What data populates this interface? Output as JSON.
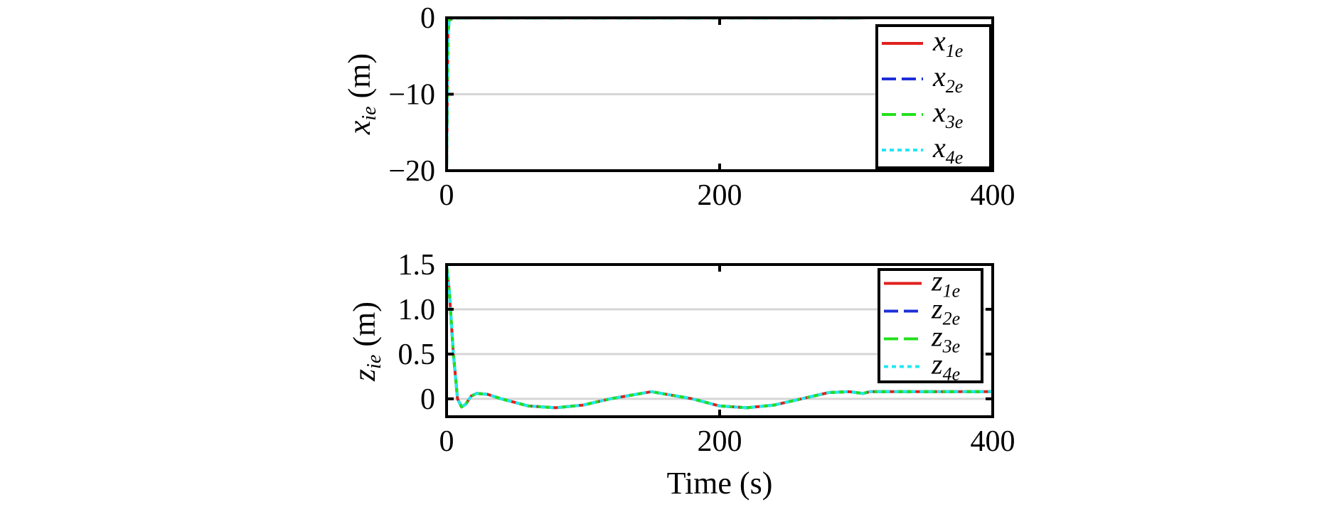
{
  "chart_data": [
    {
      "type": "line",
      "ylabel": {
        "main": "x",
        "sub": "ie",
        "unit": " (m)"
      },
      "xlabel": "",
      "xlim": [
        0,
        400
      ],
      "ylim": [
        -20,
        0
      ],
      "xticks": [
        "0",
        "200",
        "400"
      ],
      "xtick_values": [
        0,
        200,
        400
      ],
      "yticks": [
        "0",
        "−10",
        "−20"
      ],
      "ytick_values": [
        0,
        -10,
        -20
      ],
      "grid": "horizontal",
      "legend_placement": "top-right",
      "series": [
        {
          "name": "x",
          "sub": "1e",
          "color": "#e0201c",
          "style": "solid",
          "x": [
            0,
            1,
            2,
            5,
            10,
            50,
            100,
            200,
            300,
            310,
            400
          ],
          "y": [
            -20,
            -2,
            -0.3,
            -0.05,
            -0.02,
            -0.02,
            -0.02,
            -0.02,
            -0.02,
            0,
            0
          ]
        },
        {
          "name": "x",
          "sub": "2e",
          "color": "#1c2fd8",
          "style": "dash",
          "x": [
            0,
            1,
            2,
            5,
            10,
            50,
            100,
            200,
            300,
            310,
            400
          ],
          "y": [
            -20,
            -2,
            -0.3,
            -0.05,
            -0.02,
            -0.02,
            -0.02,
            -0.02,
            -0.02,
            0,
            0
          ]
        },
        {
          "name": "x",
          "sub": "3e",
          "color": "#22e01c",
          "style": "dash",
          "x": [
            0,
            1,
            2,
            5,
            10,
            50,
            100,
            200,
            300,
            310,
            400
          ],
          "y": [
            -20,
            -2,
            -0.3,
            -0.05,
            -0.02,
            -0.02,
            -0.02,
            -0.02,
            -0.02,
            0,
            0
          ]
        },
        {
          "name": "x",
          "sub": "4e",
          "color": "#22e8f0",
          "style": "dot",
          "x": [
            0,
            1,
            2,
            5,
            10,
            50,
            100,
            200,
            300,
            310,
            400
          ],
          "y": [
            -20,
            -2,
            -0.3,
            -0.05,
            -0.02,
            -0.02,
            -0.02,
            -0.02,
            -0.02,
            0,
            0
          ]
        }
      ]
    },
    {
      "type": "line",
      "ylabel": {
        "main": "z",
        "sub": "ie",
        "unit": " (m)"
      },
      "xlabel": "Time (s)",
      "xlim": [
        0,
        400
      ],
      "ylim": [
        -0.2,
        1.5
      ],
      "xticks": [
        "0",
        "200",
        "400"
      ],
      "xtick_values": [
        0,
        200,
        400
      ],
      "yticks": [
        "1.5",
        "1.0",
        "0.5",
        "0"
      ],
      "ytick_values": [
        1.5,
        1.0,
        0.5,
        0
      ],
      "grid": "horizontal",
      "legend_placement": "top-right",
      "series": [
        {
          "name": "z",
          "sub": "1e",
          "color": "#e0201c",
          "style": "solid",
          "x": [
            0,
            2,
            5,
            8,
            11,
            14,
            18,
            22,
            30,
            40,
            60,
            80,
            100,
            120,
            150,
            180,
            200,
            220,
            240,
            260,
            280,
            295,
            305,
            310,
            320,
            400
          ],
          "y": [
            1.5,
            1.2,
            0.5,
            0.0,
            -0.09,
            -0.06,
            0.03,
            0.06,
            0.05,
            0.0,
            -0.08,
            -0.1,
            -0.07,
            0.0,
            0.08,
            0.0,
            -0.08,
            -0.1,
            -0.07,
            0.0,
            0.07,
            0.08,
            0.06,
            0.08,
            0.08,
            0.08
          ]
        },
        {
          "name": "z",
          "sub": "2e",
          "color": "#1c2fd8",
          "style": "dash",
          "x": [
            0,
            2,
            5,
            8,
            11,
            14,
            18,
            22,
            30,
            40,
            60,
            80,
            100,
            120,
            150,
            180,
            200,
            220,
            240,
            260,
            280,
            295,
            305,
            310,
            320,
            400
          ],
          "y": [
            1.5,
            1.2,
            0.5,
            0.0,
            -0.09,
            -0.06,
            0.03,
            0.06,
            0.05,
            0.0,
            -0.08,
            -0.1,
            -0.07,
            0.0,
            0.08,
            0.0,
            -0.08,
            -0.1,
            -0.07,
            0.0,
            0.07,
            0.08,
            0.06,
            0.08,
            0.08,
            0.08
          ]
        },
        {
          "name": "z",
          "sub": "3e",
          "color": "#22e01c",
          "style": "dash",
          "x": [
            0,
            2,
            5,
            8,
            11,
            14,
            18,
            22,
            30,
            40,
            60,
            80,
            100,
            120,
            150,
            180,
            200,
            220,
            240,
            260,
            280,
            295,
            305,
            310,
            320,
            400
          ],
          "y": [
            1.5,
            1.2,
            0.5,
            0.0,
            -0.09,
            -0.06,
            0.03,
            0.06,
            0.05,
            0.0,
            -0.08,
            -0.1,
            -0.07,
            0.0,
            0.08,
            0.0,
            -0.08,
            -0.1,
            -0.07,
            0.0,
            0.07,
            0.08,
            0.06,
            0.08,
            0.08,
            0.08
          ]
        },
        {
          "name": "z",
          "sub": "4e",
          "color": "#22e8f0",
          "style": "dot",
          "x": [
            0,
            2,
            5,
            8,
            11,
            14,
            18,
            22,
            30,
            40,
            60,
            80,
            100,
            120,
            150,
            180,
            200,
            220,
            240,
            260,
            280,
            295,
            305,
            310,
            320,
            400
          ],
          "y": [
            1.5,
            1.2,
            0.5,
            0.0,
            -0.09,
            -0.06,
            0.03,
            0.06,
            0.05,
            0.0,
            -0.08,
            -0.1,
            -0.07,
            0.0,
            0.08,
            0.0,
            -0.08,
            -0.1,
            -0.07,
            0.0,
            0.07,
            0.08,
            0.06,
            0.08,
            0.08,
            0.08
          ]
        }
      ]
    }
  ]
}
